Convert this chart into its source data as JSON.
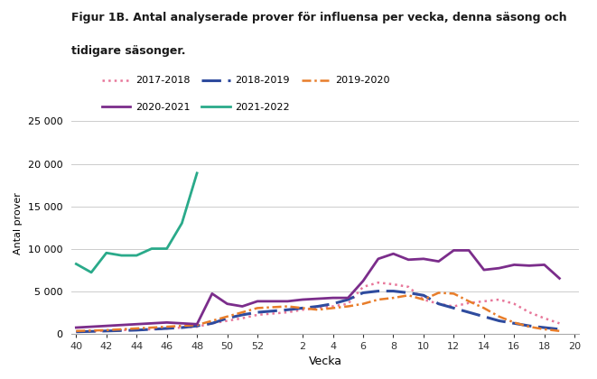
{
  "title_line1": "Figur 1B. Antal analyserade prover för influensa per vecka, denna säsong och",
  "title_line2": "tidigare säsonger.",
  "ylabel": "Antal prover",
  "xlabel": "Vecka",
  "weeks": [
    40,
    41,
    42,
    43,
    44,
    45,
    46,
    47,
    48,
    49,
    50,
    51,
    52,
    1,
    2,
    3,
    4,
    5,
    6,
    7,
    8,
    9,
    10,
    11,
    12,
    13,
    14,
    15,
    16,
    17,
    18,
    19,
    20
  ],
  "series": {
    "2017-2018": {
      "color": "#e8779a",
      "linestyle": "dotted",
      "linewidth": 1.8,
      "values": [
        200,
        250,
        350,
        400,
        450,
        500,
        600,
        700,
        800,
        1200,
        1500,
        1800,
        2200,
        2500,
        2800,
        3000,
        3200,
        3500,
        5500,
        6000,
        5800,
        5500,
        4000,
        3500,
        3200,
        3600,
        3800,
        4000,
        3500,
        2500,
        1800,
        1200,
        null
      ]
    },
    "2018-2019": {
      "color": "#2e4b9e",
      "linestyle": "dashed",
      "linewidth": 2.2,
      "values": [
        200,
        250,
        300,
        350,
        400,
        500,
        600,
        700,
        900,
        1200,
        1800,
        2200,
        2500,
        2800,
        3000,
        3200,
        3500,
        4000,
        4800,
        5000,
        5000,
        4800,
        4500,
        3500,
        3000,
        2500,
        2000,
        1500,
        1200,
        900,
        700,
        500,
        null
      ]
    },
    "2019-2020": {
      "color": "#e87d2a",
      "linewidth": 1.8,
      "values": [
        300,
        350,
        400,
        500,
        600,
        700,
        800,
        900,
        1000,
        1500,
        2000,
        2500,
        3000,
        3200,
        3000,
        2800,
        3000,
        3200,
        3500,
        4000,
        4200,
        4500,
        4000,
        4800,
        4700,
        3800,
        3000,
        2000,
        1300,
        800,
        500,
        300,
        null
      ]
    },
    "2020-2021": {
      "color": "#7b2d8b",
      "linestyle": "solid",
      "linewidth": 2.0,
      "values": [
        700,
        800,
        900,
        1000,
        1100,
        1200,
        1300,
        1200,
        1100,
        4700,
        3500,
        3200,
        3800,
        3800,
        4000,
        4100,
        4200,
        4200,
        6200,
        8800,
        9400,
        8700,
        8800,
        8500,
        9800,
        9800,
        7500,
        7700,
        8100,
        8000,
        8100,
        6500,
        null
      ]
    },
    "2021-2022": {
      "color": "#2aaa8a",
      "linestyle": "solid",
      "linewidth": 2.0,
      "values": [
        8200,
        7200,
        9500,
        9200,
        9200,
        10000,
        10000,
        13000,
        18900,
        null,
        null,
        null,
        null,
        null,
        null,
        null,
        null,
        null,
        null,
        null,
        null,
        null,
        null,
        null,
        null,
        null,
        null,
        null,
        null,
        null,
        null,
        null,
        null
      ]
    }
  },
  "ylim": [
    0,
    26000
  ],
  "yticks": [
    0,
    5000,
    10000,
    15000,
    20000,
    25000
  ],
  "ytick_labels": [
    "0",
    "5 000",
    "10 000",
    "15 000",
    "20 000",
    "25 000"
  ],
  "background_color": "#ffffff",
  "grid_color": "#cccccc"
}
